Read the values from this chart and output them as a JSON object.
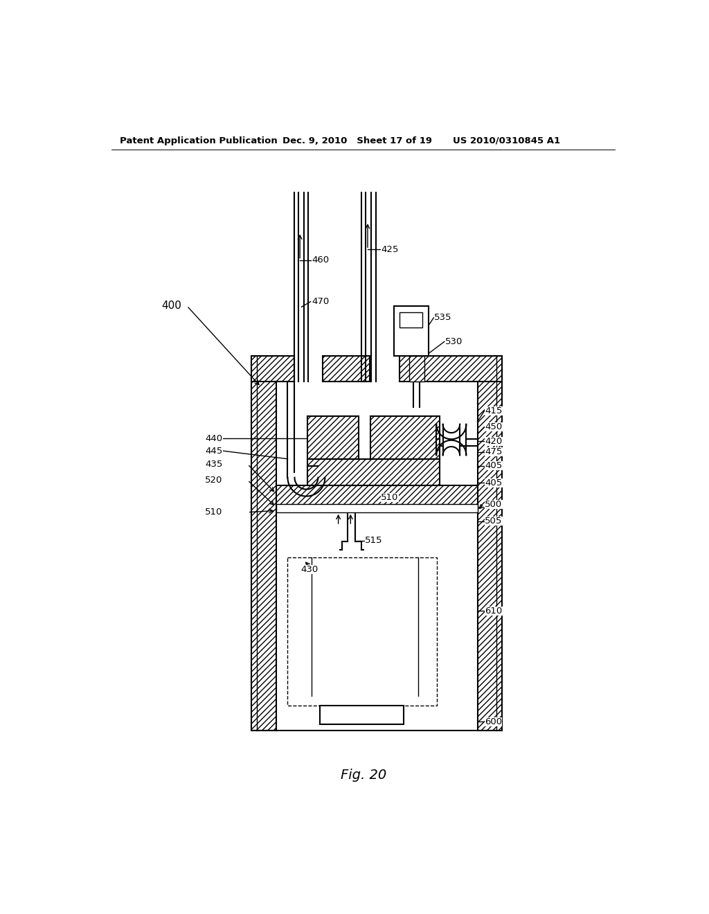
{
  "bg_color": "#ffffff",
  "line_color": "#000000",
  "header_left": "Patent Application Publication",
  "header_mid": "Dec. 9, 2010   Sheet 17 of 19",
  "header_right": "US 2010/0310845 A1",
  "fig_caption": "Fig. 20",
  "hatch_pattern": "////",
  "lw_main": 1.5,
  "lw_thin": 1.0,
  "font_size_header": 9.5,
  "font_size_label": 9.5,
  "font_size_fig": 14
}
